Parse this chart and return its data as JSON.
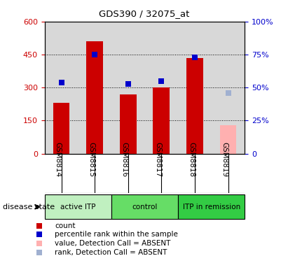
{
  "title": "GDS390 / 32075_at",
  "samples": [
    "GSM8814",
    "GSM8815",
    "GSM8816",
    "GSM8817",
    "GSM8818",
    "GSM8819"
  ],
  "counts": [
    230,
    510,
    270,
    300,
    435,
    null
  ],
  "absent_counts": [
    null,
    null,
    null,
    null,
    null,
    130
  ],
  "ranks_pct": [
    54,
    75,
    53,
    55,
    73,
    null
  ],
  "absent_rank_pct": [
    null,
    null,
    null,
    null,
    null,
    46
  ],
  "ylim_left": [
    0,
    600
  ],
  "ylim_right": [
    0,
    100
  ],
  "yticks_left": [
    0,
    150,
    300,
    450,
    600
  ],
  "ytick_labels_left": [
    "0",
    "150",
    "300",
    "450",
    "600"
  ],
  "yticks_right": [
    0,
    25,
    50,
    75,
    100
  ],
  "ytick_labels_right": [
    "0",
    "25%",
    "50%",
    "75%",
    "100%"
  ],
  "bar_color": "#cc0000",
  "absent_bar_color": "#ffb0b0",
  "rank_color": "#0000cc",
  "absent_rank_color": "#a0b0d0",
  "facecolor": "#d8d8d8",
  "groups": [
    {
      "label": "active ITP",
      "start": 0,
      "end": 2,
      "color": "#c0f0c0"
    },
    {
      "label": "control",
      "start": 2,
      "end": 4,
      "color": "#66dd66"
    },
    {
      "label": "ITP in remission",
      "start": 4,
      "end": 6,
      "color": "#33cc44"
    }
  ],
  "disease_state_label": "disease state",
  "legend_items": [
    {
      "label": "count",
      "color": "#cc0000"
    },
    {
      "label": "percentile rank within the sample",
      "color": "#0000cc"
    },
    {
      "label": "value, Detection Call = ABSENT",
      "color": "#ffb0b0"
    },
    {
      "label": "rank, Detection Call = ABSENT",
      "color": "#a0b0d0"
    }
  ]
}
